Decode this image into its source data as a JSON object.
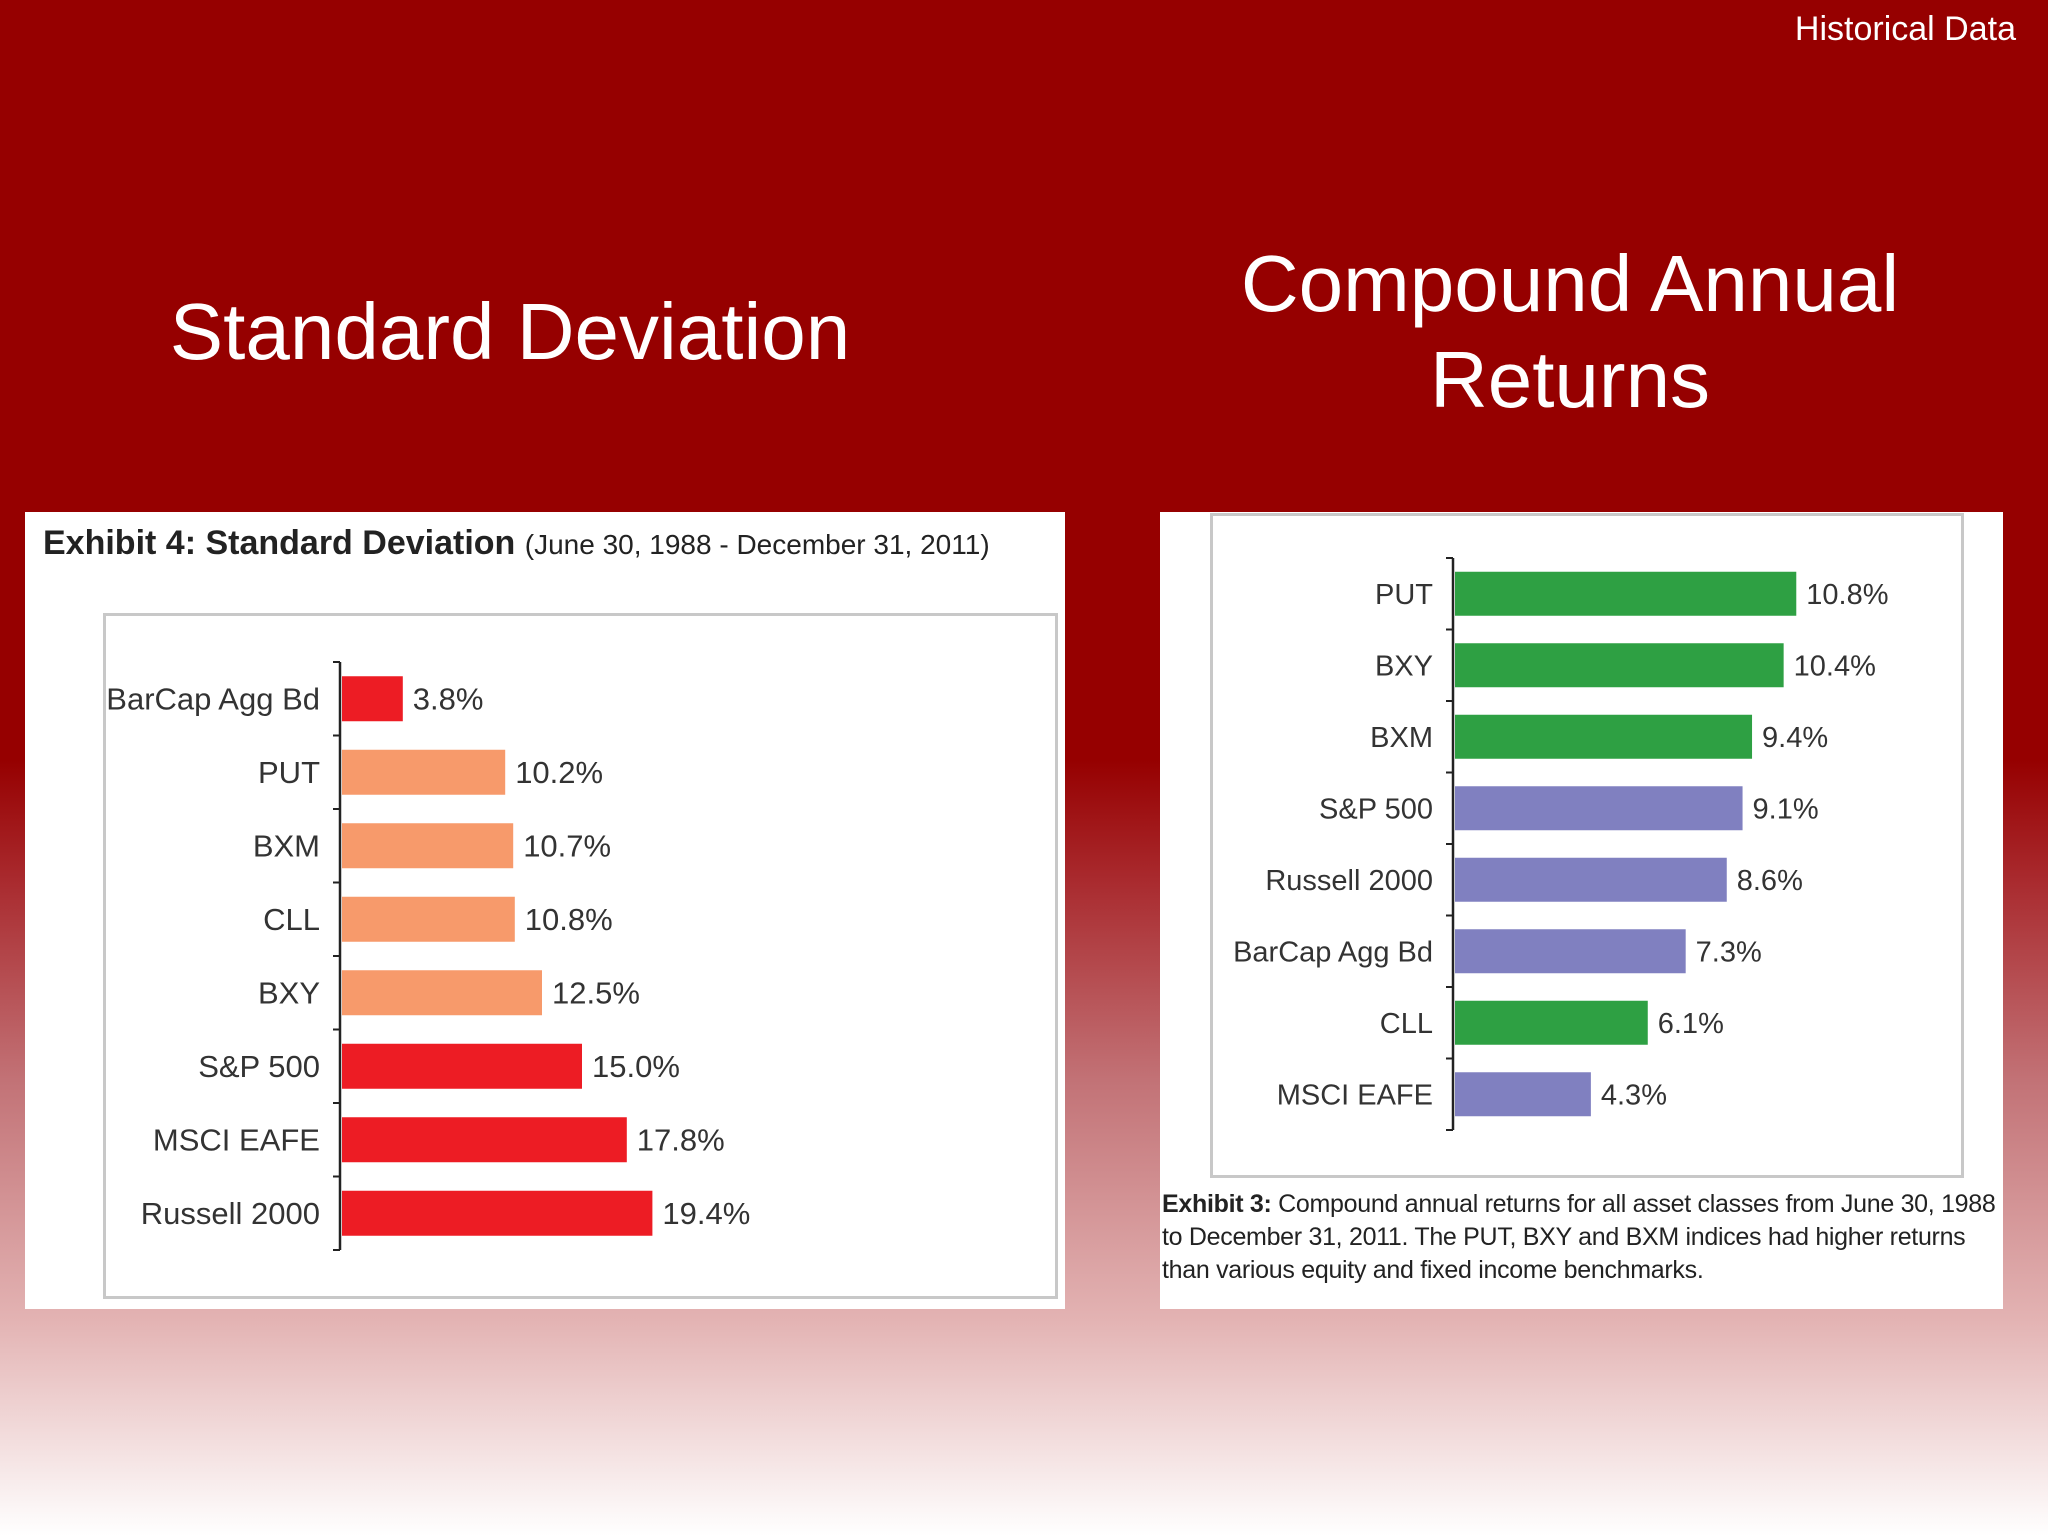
{
  "slide": {
    "corner_label": "Historical Data",
    "left_heading": "Standard Deviation",
    "right_heading": "Compound Annual Returns"
  },
  "left_exhibit": {
    "title_bold": "Exhibit 4: Standard Deviation",
    "title_sub": "(June 30, 1988 - December 31, 2011)"
  },
  "right_exhibit": {
    "caption_bold": "Exhibit 3:",
    "caption_text": " Compound annual returns for all asset classes from June 30, 1988 to December 31, 2011. The PUT, BXY and BXM indices had higher returns than various equity and fixed income benchmarks."
  },
  "colors": {
    "red": "#ed1c24",
    "orange": "#f79a6b",
    "green": "#2ea043",
    "purple": "#8080c0"
  },
  "chart_data": [
    {
      "type": "bar",
      "orientation": "horizontal",
      "title": "Exhibit 4: Standard Deviation (June 30, 1988 - December 31, 2011)",
      "unit": "%",
      "xlim": [
        0,
        30
      ],
      "categories": [
        "BarCap Agg Bd",
        "PUT",
        "BXM",
        "CLL",
        "BXY",
        "S&P 500",
        "MSCI EAFE",
        "Russell 2000"
      ],
      "values": [
        3.8,
        10.2,
        10.7,
        10.8,
        12.5,
        15.0,
        17.8,
        19.4
      ],
      "labels": [
        "3.8%",
        "10.2%",
        "10.7%",
        "10.8%",
        "12.5%",
        "15.0%",
        "17.8%",
        "19.4%"
      ],
      "bar_colors": [
        "red",
        "orange",
        "orange",
        "orange",
        "orange",
        "red",
        "red",
        "red"
      ]
    },
    {
      "type": "bar",
      "orientation": "horizontal",
      "title": "Compound Annual Returns",
      "unit": "%",
      "xlim": [
        0,
        17
      ],
      "categories": [
        "PUT",
        "BXY",
        "BXM",
        "S&P 500",
        "Russell 2000",
        "BarCap Agg Bd",
        "CLL",
        "MSCI EAFE"
      ],
      "values": [
        10.8,
        10.4,
        9.4,
        9.1,
        8.6,
        7.3,
        6.1,
        4.3
      ],
      "labels": [
        "10.8%",
        "10.4%",
        "9.4%",
        "9.1%",
        "8.6%",
        "7.3%",
        "6.1%",
        "4.3%"
      ],
      "bar_colors": [
        "green",
        "green",
        "green",
        "purple",
        "purple",
        "purple",
        "green",
        "purple"
      ]
    }
  ]
}
